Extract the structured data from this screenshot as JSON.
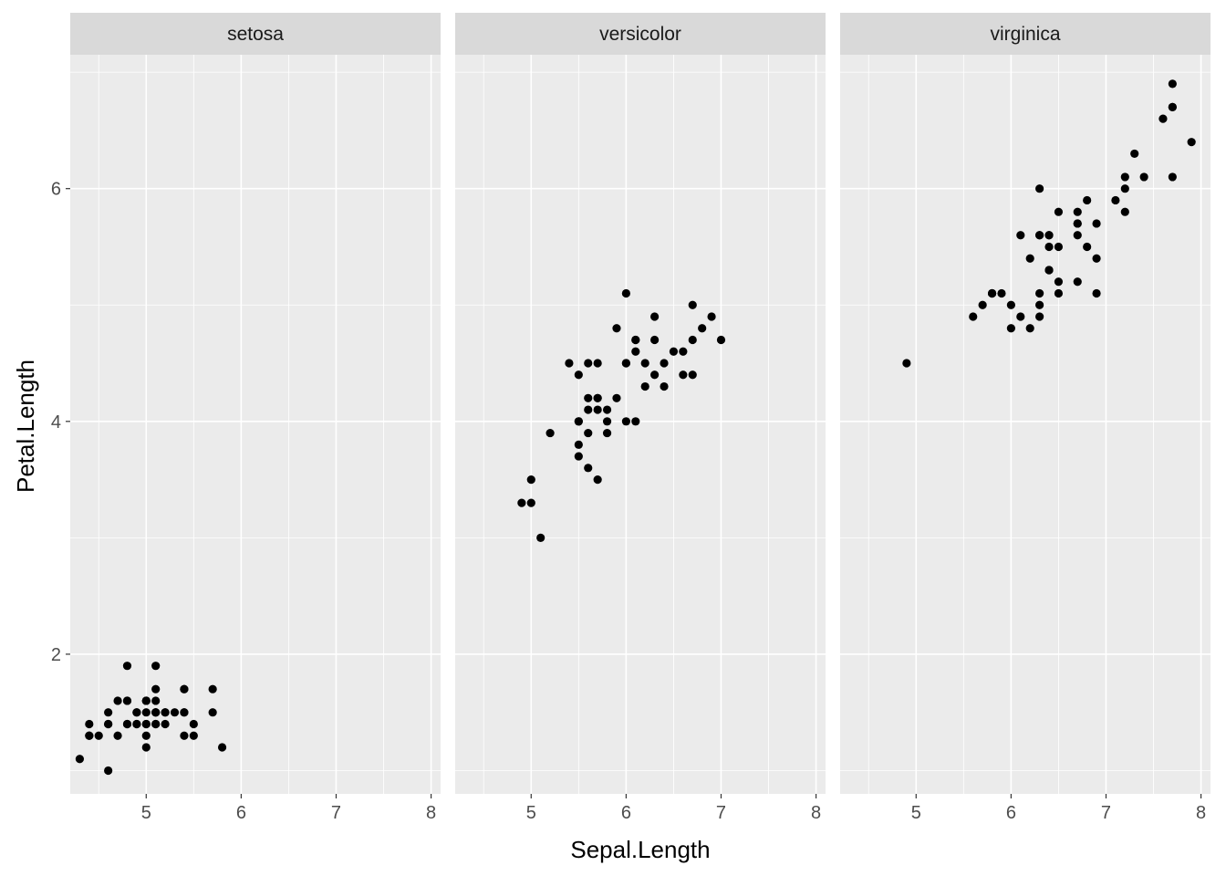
{
  "chart_data": {
    "type": "scatter",
    "facet_by": "Species",
    "xlabel": "Sepal.Length",
    "ylabel": "Petal.Length",
    "xlim": [
      4.2,
      8.1
    ],
    "ylim": [
      0.8,
      7.15
    ],
    "x_ticks": [
      5,
      6,
      7,
      8
    ],
    "y_ticks": [
      2,
      4,
      6
    ],
    "grid": true,
    "colors": {
      "panel_bg": "#ebebeb",
      "strip_bg": "#d9d9d9",
      "grid": "#ffffff",
      "point": "#000000"
    },
    "panels": [
      {
        "label": "setosa",
        "points": [
          [
            5.1,
            1.4
          ],
          [
            4.9,
            1.4
          ],
          [
            4.7,
            1.3
          ],
          [
            4.6,
            1.5
          ],
          [
            5.0,
            1.4
          ],
          [
            5.4,
            1.7
          ],
          [
            4.6,
            1.4
          ],
          [
            5.0,
            1.5
          ],
          [
            4.4,
            1.4
          ],
          [
            4.9,
            1.5
          ],
          [
            5.4,
            1.5
          ],
          [
            4.8,
            1.6
          ],
          [
            4.8,
            1.4
          ],
          [
            4.3,
            1.1
          ],
          [
            5.8,
            1.2
          ],
          [
            5.7,
            1.5
          ],
          [
            5.4,
            1.3
          ],
          [
            5.1,
            1.4
          ],
          [
            5.7,
            1.7
          ],
          [
            5.1,
            1.5
          ],
          [
            5.4,
            1.7
          ],
          [
            5.1,
            1.5
          ],
          [
            4.6,
            1.0
          ],
          [
            5.1,
            1.7
          ],
          [
            4.8,
            1.9
          ],
          [
            5.0,
            1.6
          ],
          [
            5.0,
            1.6
          ],
          [
            5.2,
            1.5
          ],
          [
            5.2,
            1.4
          ],
          [
            4.7,
            1.6
          ],
          [
            4.8,
            1.6
          ],
          [
            5.4,
            1.5
          ],
          [
            5.2,
            1.5
          ],
          [
            5.5,
            1.4
          ],
          [
            4.9,
            1.5
          ],
          [
            5.0,
            1.2
          ],
          [
            5.5,
            1.3
          ],
          [
            4.9,
            1.4
          ],
          [
            4.4,
            1.3
          ],
          [
            5.1,
            1.5
          ],
          [
            5.0,
            1.3
          ],
          [
            4.5,
            1.3
          ],
          [
            4.4,
            1.3
          ],
          [
            5.0,
            1.6
          ],
          [
            5.1,
            1.9
          ],
          [
            4.8,
            1.4
          ],
          [
            5.1,
            1.6
          ],
          [
            4.6,
            1.4
          ],
          [
            5.3,
            1.5
          ],
          [
            5.0,
            1.4
          ]
        ]
      },
      {
        "label": "versicolor",
        "points": [
          [
            7.0,
            4.7
          ],
          [
            6.4,
            4.5
          ],
          [
            6.9,
            4.9
          ],
          [
            5.5,
            4.0
          ],
          [
            6.5,
            4.6
          ],
          [
            5.7,
            4.5
          ],
          [
            6.3,
            4.7
          ],
          [
            4.9,
            3.3
          ],
          [
            6.6,
            4.6
          ],
          [
            5.2,
            3.9
          ],
          [
            5.0,
            3.5
          ],
          [
            5.9,
            4.2
          ],
          [
            6.0,
            4.0
          ],
          [
            6.1,
            4.7
          ],
          [
            5.6,
            3.6
          ],
          [
            6.7,
            4.4
          ],
          [
            5.6,
            4.5
          ],
          [
            5.8,
            4.1
          ],
          [
            6.2,
            4.5
          ],
          [
            5.6,
            3.9
          ],
          [
            5.9,
            4.8
          ],
          [
            6.1,
            4.0
          ],
          [
            6.3,
            4.9
          ],
          [
            6.1,
            4.7
          ],
          [
            6.4,
            4.3
          ],
          [
            6.6,
            4.4
          ],
          [
            6.8,
            4.8
          ],
          [
            6.7,
            5.0
          ],
          [
            6.0,
            4.5
          ],
          [
            5.7,
            3.5
          ],
          [
            5.5,
            3.8
          ],
          [
            5.5,
            3.7
          ],
          [
            5.8,
            3.9
          ],
          [
            6.0,
            5.1
          ],
          [
            5.4,
            4.5
          ],
          [
            6.0,
            4.5
          ],
          [
            6.7,
            4.7
          ],
          [
            6.3,
            4.4
          ],
          [
            5.6,
            4.1
          ],
          [
            5.5,
            4.0
          ],
          [
            5.5,
            4.4
          ],
          [
            6.1,
            4.6
          ],
          [
            5.8,
            4.0
          ],
          [
            5.0,
            3.3
          ],
          [
            5.6,
            4.2
          ],
          [
            5.7,
            4.2
          ],
          [
            5.7,
            4.2
          ],
          [
            6.2,
            4.3
          ],
          [
            5.1,
            3.0
          ],
          [
            5.7,
            4.1
          ]
        ]
      },
      {
        "label": "virginica",
        "points": [
          [
            6.3,
            6.0
          ],
          [
            5.8,
            5.1
          ],
          [
            7.1,
            5.9
          ],
          [
            6.3,
            5.6
          ],
          [
            6.5,
            5.8
          ],
          [
            7.6,
            6.6
          ],
          [
            4.9,
            4.5
          ],
          [
            7.3,
            6.3
          ],
          [
            6.7,
            5.8
          ],
          [
            7.2,
            6.1
          ],
          [
            6.5,
            5.1
          ],
          [
            6.4,
            5.3
          ],
          [
            6.8,
            5.5
          ],
          [
            5.7,
            5.0
          ],
          [
            5.8,
            5.1
          ],
          [
            6.4,
            5.3
          ],
          [
            6.5,
            5.5
          ],
          [
            7.7,
            6.7
          ],
          [
            7.7,
            6.9
          ],
          [
            6.0,
            5.0
          ],
          [
            6.9,
            5.7
          ],
          [
            5.6,
            4.9
          ],
          [
            7.7,
            6.7
          ],
          [
            6.3,
            4.9
          ],
          [
            6.7,
            5.7
          ],
          [
            7.2,
            6.0
          ],
          [
            6.2,
            4.8
          ],
          [
            6.1,
            4.9
          ],
          [
            6.4,
            5.6
          ],
          [
            7.2,
            5.8
          ],
          [
            7.4,
            6.1
          ],
          [
            7.9,
            6.4
          ],
          [
            6.4,
            5.6
          ],
          [
            6.3,
            5.1
          ],
          [
            6.1,
            5.6
          ],
          [
            7.7,
            6.1
          ],
          [
            6.3,
            5.6
          ],
          [
            6.4,
            5.5
          ],
          [
            6.0,
            4.8
          ],
          [
            6.9,
            5.4
          ],
          [
            6.7,
            5.6
          ],
          [
            6.9,
            5.1
          ],
          [
            5.8,
            5.1
          ],
          [
            6.8,
            5.9
          ],
          [
            6.7,
            5.7
          ],
          [
            6.7,
            5.2
          ],
          [
            6.3,
            5.0
          ],
          [
            6.5,
            5.2
          ],
          [
            6.2,
            5.4
          ],
          [
            5.9,
            5.1
          ]
        ]
      }
    ]
  }
}
